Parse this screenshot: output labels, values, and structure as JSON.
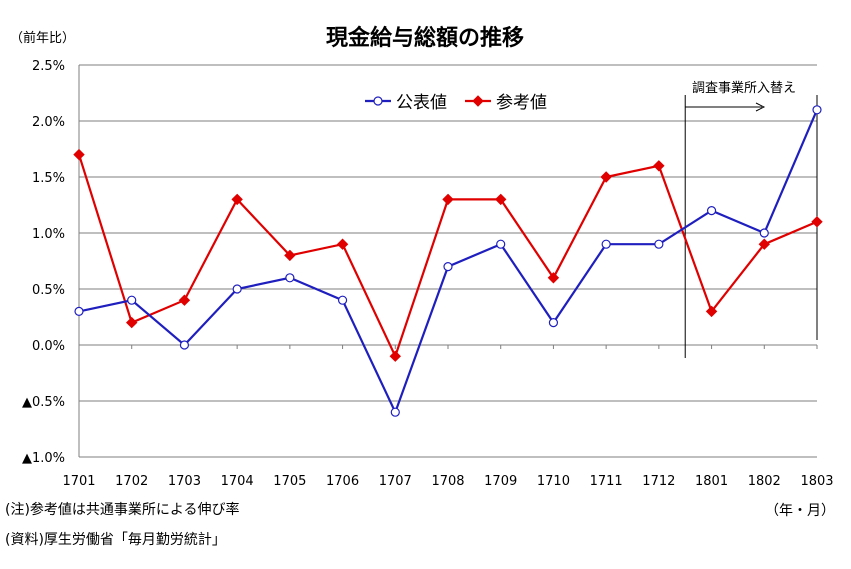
{
  "chart_data": {
    "type": "line",
    "title": "現金給与総額の推移",
    "unit_label": "（前年比）",
    "x_unit_label": "（年・月）",
    "categories": [
      "1701",
      "1702",
      "1703",
      "1704",
      "1705",
      "1706",
      "1707",
      "1708",
      "1709",
      "1710",
      "1711",
      "1712",
      "1801",
      "1802",
      "1803"
    ],
    "series": [
      {
        "name": "公表値",
        "color": "#1f1fbf",
        "marker": "open-circle",
        "values": [
          0.3,
          0.4,
          0.0,
          0.5,
          0.6,
          0.4,
          -0.6,
          0.7,
          0.9,
          0.2,
          0.9,
          0.9,
          1.2,
          1.0,
          2.1
        ]
      },
      {
        "name": "参考値",
        "color": "#e00000",
        "marker": "diamond",
        "values": [
          1.7,
          0.2,
          0.4,
          1.3,
          0.8,
          0.9,
          -0.1,
          1.3,
          1.3,
          0.6,
          1.5,
          1.6,
          0.3,
          0.9,
          1.1
        ]
      }
    ],
    "ylim": [
      -1.0,
      2.5
    ],
    "yticks": [
      {
        "value": 2.5,
        "label": "2.5%"
      },
      {
        "value": 2.0,
        "label": "2.0%"
      },
      {
        "value": 1.5,
        "label": "1.5%"
      },
      {
        "value": 1.0,
        "label": "1.0%"
      },
      {
        "value": 0.5,
        "label": "0.5%"
      },
      {
        "value": 0.0,
        "label": "0.0%"
      },
      {
        "value": -0.5,
        "label": "▲0.5%"
      },
      {
        "value": -1.0,
        "label": "▲1.0%"
      }
    ],
    "grid": "horizontal",
    "legend": "top-center",
    "annotation": {
      "text": "調査事業所入替え",
      "after_category": "1712"
    },
    "notes": [
      "(注)参考値は共通事業所による伸び率",
      "(資料)厚生労働省「毎月勤労統計」"
    ]
  }
}
